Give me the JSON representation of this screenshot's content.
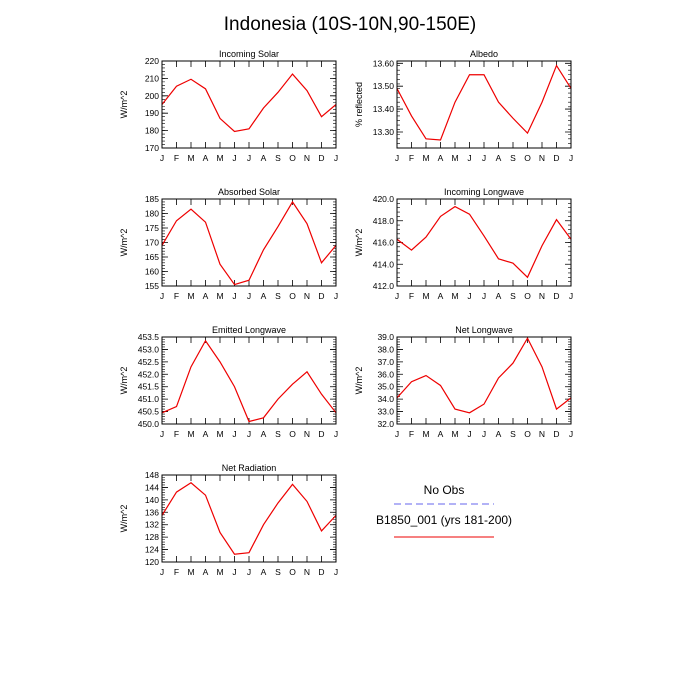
{
  "title": "Indonesia (10S-10N,90-150E)",
  "legend": {
    "items": [
      {
        "label": "No Obs",
        "color": "#6666ee",
        "dashed": true
      },
      {
        "label": "B1850_001 (yrs 181-200)",
        "color": "#ee0000",
        "dashed": false
      }
    ]
  },
  "chart_data": [
    {
      "type": "line",
      "title": "Incoming Solar",
      "ylabel": "W/m^2",
      "categories": [
        "J",
        "F",
        "M",
        "A",
        "M",
        "J",
        "J",
        "A",
        "S",
        "O",
        "N",
        "D",
        "J"
      ],
      "ylim": [
        170,
        220
      ],
      "yticks": [
        170,
        180,
        190,
        200,
        210,
        220
      ],
      "decimals": 0,
      "series": [
        {
          "name": "B1850_001 (yrs 181-200)",
          "color": "#ee0000",
          "values": [
            195,
            205.5,
            209.5,
            204,
            187,
            179.5,
            181,
            193,
            202,
            212.5,
            203,
            188,
            195
          ]
        }
      ]
    },
    {
      "type": "line",
      "title": "Albedo",
      "ylabel": "% reflected",
      "categories": [
        "J",
        "F",
        "M",
        "A",
        "M",
        "J",
        "J",
        "A",
        "S",
        "O",
        "N",
        "D",
        "J"
      ],
      "ylim": [
        13.23,
        13.61
      ],
      "yticks": [
        13.3,
        13.4,
        13.5,
        13.6
      ],
      "decimals": 2,
      "series": [
        {
          "name": "B1850_001 (yrs 181-200)",
          "color": "#ee0000",
          "values": [
            13.49,
            13.37,
            13.27,
            13.265,
            13.43,
            13.55,
            13.55,
            13.43,
            13.36,
            13.295,
            13.43,
            13.59,
            13.49
          ]
        }
      ]
    },
    {
      "type": "line",
      "title": "Absorbed Solar",
      "ylabel": "W/m^2",
      "categories": [
        "J",
        "F",
        "M",
        "A",
        "M",
        "J",
        "J",
        "A",
        "S",
        "O",
        "N",
        "D",
        "J"
      ],
      "ylim": [
        155,
        185
      ],
      "yticks": [
        155,
        160,
        165,
        170,
        175,
        180,
        185
      ],
      "decimals": 0,
      "series": [
        {
          "name": "B1850_001 (yrs 181-200)",
          "color": "#ee0000",
          "values": [
            169,
            177.5,
            181.5,
            177,
            162.5,
            155.5,
            157,
            167.5,
            175.5,
            184,
            176.5,
            163,
            169
          ]
        }
      ]
    },
    {
      "type": "line",
      "title": "Incoming Longwave",
      "ylabel": "W/m^2",
      "categories": [
        "J",
        "F",
        "M",
        "A",
        "M",
        "J",
        "J",
        "A",
        "S",
        "O",
        "N",
        "D",
        "J"
      ],
      "ylim": [
        412,
        420
      ],
      "yticks": [
        412,
        414,
        416,
        418,
        420
      ],
      "decimals": 1,
      "series": [
        {
          "name": "B1850_001 (yrs 181-200)",
          "color": "#ee0000",
          "values": [
            416.3,
            415.3,
            416.5,
            418.4,
            419.3,
            418.6,
            416.6,
            414.5,
            414.1,
            412.8,
            415.7,
            418.1,
            416.3
          ]
        }
      ]
    },
    {
      "type": "line",
      "title": "Emitted Longwave",
      "ylabel": "W/m^2",
      "categories": [
        "J",
        "F",
        "M",
        "A",
        "M",
        "J",
        "J",
        "A",
        "S",
        "O",
        "N",
        "D",
        "J"
      ],
      "ylim": [
        450,
        453.5
      ],
      "yticks": [
        450,
        450.5,
        451,
        451.5,
        452,
        452.5,
        453,
        453.5
      ],
      "decimals": 1,
      "series": [
        {
          "name": "B1850_001 (yrs 181-200)",
          "color": "#ee0000",
          "values": [
            450.45,
            450.7,
            452.3,
            453.35,
            452.5,
            451.5,
            450.1,
            450.25,
            451,
            451.6,
            452.1,
            451.2,
            450.45
          ]
        }
      ]
    },
    {
      "type": "line",
      "title": "Net Longwave",
      "ylabel": "W/m^2",
      "categories": [
        "J",
        "F",
        "M",
        "A",
        "M",
        "J",
        "J",
        "A",
        "S",
        "O",
        "N",
        "D",
        "J"
      ],
      "ylim": [
        32,
        39
      ],
      "yticks": [
        32,
        33,
        34,
        35,
        36,
        37,
        38,
        39
      ],
      "decimals": 1,
      "series": [
        {
          "name": "B1850_001 (yrs 181-200)",
          "color": "#ee0000",
          "values": [
            34.1,
            35.4,
            35.9,
            35.1,
            33.2,
            32.9,
            33.6,
            35.7,
            36.9,
            38.9,
            36.6,
            33.2,
            34.1
          ]
        }
      ]
    },
    {
      "type": "line",
      "title": "Net Radiation",
      "ylabel": "W/m^2",
      "categories": [
        "J",
        "F",
        "M",
        "A",
        "M",
        "J",
        "J",
        "A",
        "S",
        "O",
        "N",
        "D",
        "J"
      ],
      "ylim": [
        120,
        148
      ],
      "yticks": [
        120,
        124,
        128,
        132,
        136,
        140,
        144,
        148
      ],
      "decimals": 0,
      "series": [
        {
          "name": "B1850_001 (yrs 181-200)",
          "color": "#ee0000",
          "values": [
            135,
            142.5,
            145.5,
            141.5,
            129.5,
            122.5,
            123,
            132,
            139,
            145,
            139.5,
            130,
            135
          ]
        }
      ]
    }
  ]
}
